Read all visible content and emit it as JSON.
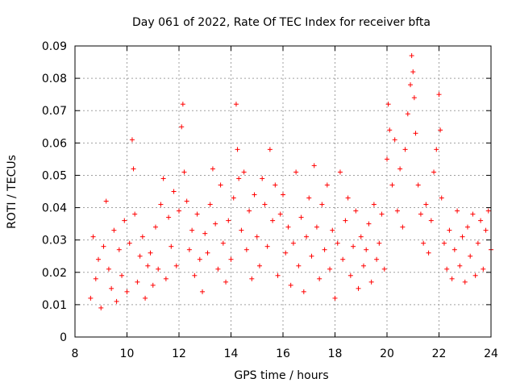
{
  "chart_data": {
    "type": "scatter",
    "title": "Day 061 of 2022, Rate Of TEC Index for receiver bfta",
    "xlabel": "GPS time / hours",
    "ylabel": "ROTI / TECUs",
    "xlim": [
      8,
      24
    ],
    "ylim": [
      0,
      0.09
    ],
    "xticks": [
      8,
      10,
      12,
      14,
      16,
      18,
      20,
      22,
      24
    ],
    "xtick_labels": [
      "8",
      "10",
      "12",
      "14",
      "16",
      "18",
      "20",
      "22",
      "24"
    ],
    "yticks": [
      0,
      0.01,
      0.02,
      0.03,
      0.04,
      0.05,
      0.06,
      0.07,
      0.08,
      0.09
    ],
    "ytick_labels": [
      "0",
      "0.01",
      "0.02",
      "0.03",
      "0.04",
      "0.05",
      "0.06",
      "0.07",
      "0.08",
      "0.09"
    ],
    "grid": true,
    "marker": "+",
    "color": "#ff0000",
    "series": [
      {
        "points": [
          [
            8.6,
            0.012
          ],
          [
            8.7,
            0.031
          ],
          [
            8.8,
            0.018
          ],
          [
            8.9,
            0.024
          ],
          [
            9.0,
            0.009
          ],
          [
            9.1,
            0.028
          ],
          [
            9.2,
            0.042
          ],
          [
            9.3,
            0.021
          ],
          [
            9.4,
            0.015
          ],
          [
            9.5,
            0.033
          ],
          [
            9.6,
            0.011
          ],
          [
            9.7,
            0.027
          ],
          [
            9.8,
            0.019
          ],
          [
            9.9,
            0.036
          ],
          [
            10.0,
            0.014
          ],
          [
            10.1,
            0.029
          ],
          [
            10.2,
            0.061
          ],
          [
            10.25,
            0.052
          ],
          [
            10.3,
            0.038
          ],
          [
            10.4,
            0.017
          ],
          [
            10.5,
            0.025
          ],
          [
            10.6,
            0.031
          ],
          [
            10.7,
            0.012
          ],
          [
            10.8,
            0.022
          ],
          [
            10.9,
            0.026
          ],
          [
            11.0,
            0.016
          ],
          [
            11.1,
            0.034
          ],
          [
            11.2,
            0.021
          ],
          [
            11.3,
            0.041
          ],
          [
            11.4,
            0.049
          ],
          [
            11.5,
            0.018
          ],
          [
            11.6,
            0.037
          ],
          [
            11.7,
            0.028
          ],
          [
            11.8,
            0.045
          ],
          [
            11.9,
            0.022
          ],
          [
            12.0,
            0.039
          ],
          [
            12.1,
            0.065
          ],
          [
            12.15,
            0.072
          ],
          [
            12.2,
            0.051
          ],
          [
            12.3,
            0.042
          ],
          [
            12.4,
            0.027
          ],
          [
            12.5,
            0.033
          ],
          [
            12.6,
            0.019
          ],
          [
            12.7,
            0.038
          ],
          [
            12.8,
            0.024
          ],
          [
            12.9,
            0.014
          ],
          [
            13.0,
            0.032
          ],
          [
            13.1,
            0.026
          ],
          [
            13.2,
            0.041
          ],
          [
            13.3,
            0.052
          ],
          [
            13.4,
            0.035
          ],
          [
            13.5,
            0.021
          ],
          [
            13.6,
            0.047
          ],
          [
            13.7,
            0.029
          ],
          [
            13.8,
            0.017
          ],
          [
            13.9,
            0.036
          ],
          [
            14.0,
            0.024
          ],
          [
            14.1,
            0.043
          ],
          [
            14.2,
            0.072
          ],
          [
            14.25,
            0.058
          ],
          [
            14.3,
            0.049
          ],
          [
            14.4,
            0.033
          ],
          [
            14.5,
            0.051
          ],
          [
            14.6,
            0.027
          ],
          [
            14.7,
            0.039
          ],
          [
            14.8,
            0.018
          ],
          [
            14.9,
            0.044
          ],
          [
            15.0,
            0.031
          ],
          [
            15.1,
            0.022
          ],
          [
            15.2,
            0.049
          ],
          [
            15.3,
            0.041
          ],
          [
            15.4,
            0.028
          ],
          [
            15.5,
            0.058
          ],
          [
            15.6,
            0.036
          ],
          [
            15.7,
            0.047
          ],
          [
            15.8,
            0.019
          ],
          [
            15.9,
            0.038
          ],
          [
            16.0,
            0.044
          ],
          [
            16.1,
            0.026
          ],
          [
            16.2,
            0.034
          ],
          [
            16.3,
            0.016
          ],
          [
            16.4,
            0.029
          ],
          [
            16.5,
            0.051
          ],
          [
            16.6,
            0.022
          ],
          [
            16.7,
            0.037
          ],
          [
            16.8,
            0.014
          ],
          [
            16.9,
            0.031
          ],
          [
            17.0,
            0.043
          ],
          [
            17.1,
            0.025
          ],
          [
            17.2,
            0.053
          ],
          [
            17.3,
            0.034
          ],
          [
            17.4,
            0.018
          ],
          [
            17.5,
            0.041
          ],
          [
            17.6,
            0.027
          ],
          [
            17.7,
            0.047
          ],
          [
            17.8,
            0.021
          ],
          [
            17.9,
            0.033
          ],
          [
            18.0,
            0.012
          ],
          [
            18.1,
            0.029
          ],
          [
            18.2,
            0.051
          ],
          [
            18.3,
            0.024
          ],
          [
            18.4,
            0.036
          ],
          [
            18.5,
            0.043
          ],
          [
            18.6,
            0.019
          ],
          [
            18.7,
            0.028
          ],
          [
            18.8,
            0.039
          ],
          [
            18.9,
            0.015
          ],
          [
            19.0,
            0.031
          ],
          [
            19.1,
            0.022
          ],
          [
            19.2,
            0.027
          ],
          [
            19.3,
            0.035
          ],
          [
            19.4,
            0.017
          ],
          [
            19.5,
            0.041
          ],
          [
            19.6,
            0.024
          ],
          [
            19.7,
            0.029
          ],
          [
            19.8,
            0.038
          ],
          [
            19.9,
            0.021
          ],
          [
            20.0,
            0.055
          ],
          [
            20.05,
            0.072
          ],
          [
            20.1,
            0.064
          ],
          [
            20.2,
            0.047
          ],
          [
            20.3,
            0.061
          ],
          [
            20.4,
            0.039
          ],
          [
            20.5,
            0.052
          ],
          [
            20.6,
            0.034
          ],
          [
            20.7,
            0.058
          ],
          [
            20.8,
            0.069
          ],
          [
            20.9,
            0.078
          ],
          [
            20.95,
            0.087
          ],
          [
            21.0,
            0.082
          ],
          [
            21.05,
            0.074
          ],
          [
            21.1,
            0.063
          ],
          [
            21.2,
            0.047
          ],
          [
            21.3,
            0.038
          ],
          [
            21.4,
            0.029
          ],
          [
            21.5,
            0.041
          ],
          [
            21.6,
            0.026
          ],
          [
            21.7,
            0.036
          ],
          [
            21.8,
            0.051
          ],
          [
            21.9,
            0.058
          ],
          [
            22.0,
            0.075
          ],
          [
            22.05,
            0.064
          ],
          [
            22.1,
            0.043
          ],
          [
            22.2,
            0.029
          ],
          [
            22.3,
            0.021
          ],
          [
            22.4,
            0.033
          ],
          [
            22.5,
            0.018
          ],
          [
            22.6,
            0.027
          ],
          [
            22.7,
            0.039
          ],
          [
            22.8,
            0.022
          ],
          [
            22.9,
            0.031
          ],
          [
            23.0,
            0.017
          ],
          [
            23.1,
            0.034
          ],
          [
            23.2,
            0.025
          ],
          [
            23.3,
            0.038
          ],
          [
            23.4,
            0.019
          ],
          [
            23.5,
            0.029
          ],
          [
            23.6,
            0.036
          ],
          [
            23.7,
            0.021
          ],
          [
            23.8,
            0.033
          ],
          [
            23.9,
            0.039
          ],
          [
            24.0,
            0.027
          ]
        ]
      }
    ]
  }
}
